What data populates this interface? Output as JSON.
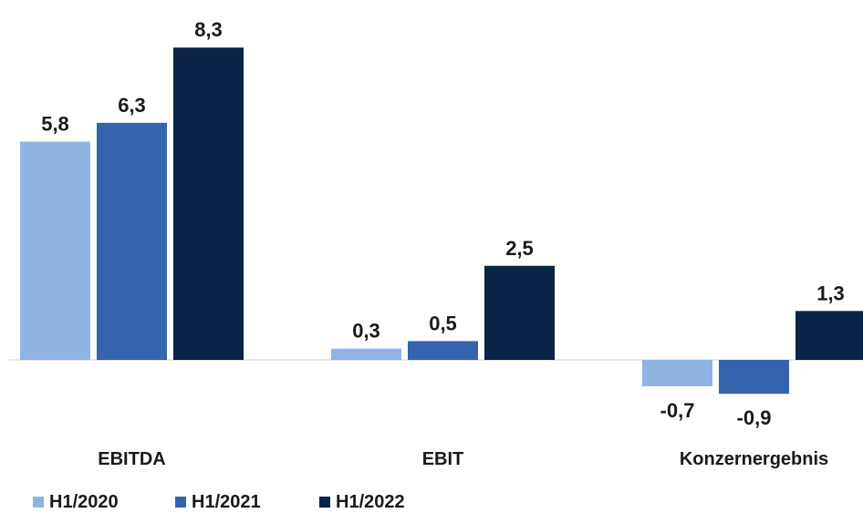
{
  "chart_data": {
    "type": "bar",
    "categories": [
      "EBITDA",
      "EBIT",
      "Konzernergebnis"
    ],
    "series": [
      {
        "name": "H1/2020",
        "values": [
          5.8,
          0.3,
          -0.7
        ],
        "labels": [
          "5,8",
          "0,3",
          "-0,7"
        ],
        "color": "#8fb4e3"
      },
      {
        "name": "H1/2021",
        "values": [
          6.3,
          0.5,
          -0.9
        ],
        "labels": [
          "6,3",
          "0,5",
          "-0,9"
        ],
        "color": "#3563ad"
      },
      {
        "name": "H1/2022",
        "values": [
          8.3,
          2.5,
          1.3
        ],
        "labels": [
          "8,3",
          "2,5",
          "1,3"
        ],
        "color": "#0b2346"
      }
    ],
    "legend_position": "bottom-left",
    "grid": false
  }
}
